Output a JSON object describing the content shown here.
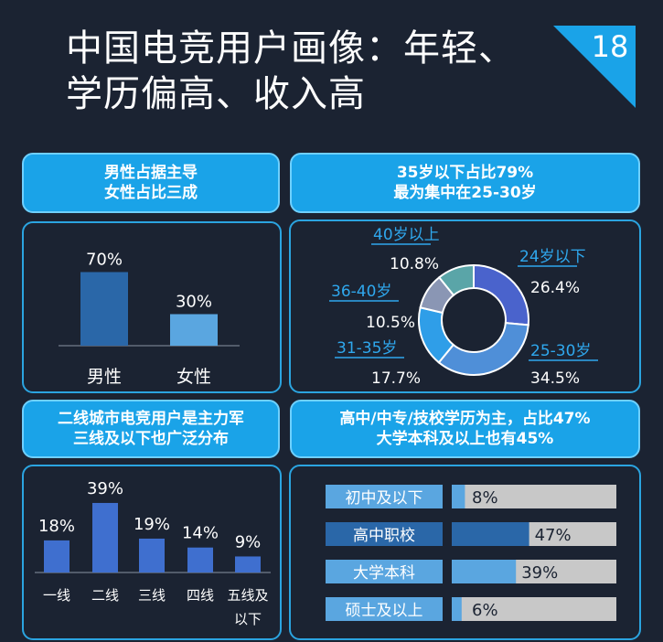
{
  "title": {
    "line1": "中国电竞用户画像：年轻、",
    "line2": "学历偏高、收入高"
  },
  "page_number": "18",
  "colors": {
    "background": "#1b2332",
    "header_fill": "#1aa3e8",
    "panel_border": "#2ba4e0",
    "bar_dark": "#2a67a8",
    "bar_light": "#5aa6e0",
    "bar_blue": "#3f6fcf",
    "gray_track": "#c8c8c8"
  },
  "panels": {
    "gender": {
      "header_line1": "男性占据主导",
      "header_line2": "女性占比三成"
    },
    "age": {
      "header_line1": "35岁以下占比79%",
      "header_line2": "最为集中在25-30岁"
    },
    "city": {
      "header_line1": "二线城市电竞用户是主力军",
      "header_line2": "三线及以下也广泛分布"
    },
    "education": {
      "header_line1": "高中/中专/技校学历为主，占比47%",
      "header_line2": "大学本科及以上也有45%"
    }
  },
  "chart_data": [
    {
      "type": "bar",
      "id": "gender",
      "categories": [
        "男性",
        "女性"
      ],
      "values": [
        70,
        30
      ],
      "value_labels": [
        "70%",
        "30%"
      ],
      "colors": [
        "#2a67a8",
        "#5aa6e0"
      ]
    },
    {
      "type": "pie",
      "id": "age",
      "donut": true,
      "labels": [
        "24岁以下",
        "25-30岁",
        "31-35岁",
        "36-40岁",
        "40岁以上"
      ],
      "values": [
        26.4,
        34.5,
        17.7,
        10.5,
        10.8
      ],
      "value_labels": [
        "26.4%",
        "34.5%",
        "17.7%",
        "10.5%",
        "10.8%"
      ],
      "colors": [
        "#4a63cc",
        "#4f8fd8",
        "#2f9ee8",
        "#8a96b4",
        "#5aa5a8"
      ]
    },
    {
      "type": "bar",
      "id": "city",
      "categories": [
        "一线",
        "二线",
        "三线",
        "四线",
        "五线及以下"
      ],
      "category_lines": [
        [
          "一线"
        ],
        [
          "二线"
        ],
        [
          "三线"
        ],
        [
          "四线"
        ],
        [
          "五线及",
          "以下"
        ]
      ],
      "values": [
        18,
        39,
        19,
        14,
        9
      ],
      "value_labels": [
        "18%",
        "39%",
        "19%",
        "14%",
        "9%"
      ],
      "color": "#3f6fcf"
    },
    {
      "type": "bar",
      "id": "education",
      "orientation": "horizontal",
      "categories": [
        "初中及以下",
        "高中职校",
        "大学本科",
        "硕士及以上"
      ],
      "values": [
        8,
        47,
        39,
        6
      ],
      "value_labels": [
        "8%",
        "47%",
        "39%",
        "6%"
      ],
      "xlim": [
        0,
        100
      ],
      "colors": [
        "#5aa6e0",
        "#2a67a8",
        "#5aa6e0",
        "#5aa6e0"
      ],
      "label_colors": [
        "#5aa6e0",
        "#2a67a8",
        "#5aa6e0",
        "#5aa6e0"
      ]
    }
  ]
}
